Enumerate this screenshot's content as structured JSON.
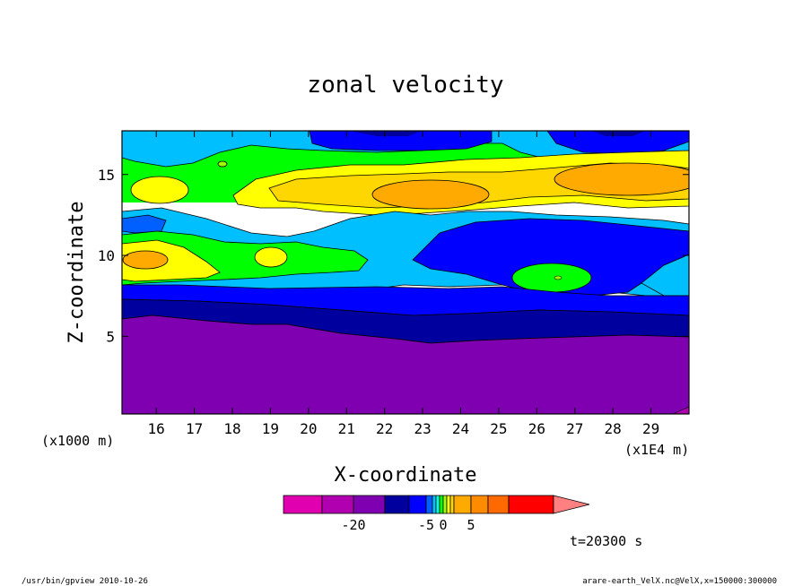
{
  "chart_data": {
    "type": "heatmap",
    "title": "zonal velocity",
    "xlabel": "X-coordinate",
    "ylabel": "Z-coordinate",
    "x_unit_left": "(x1000 m)",
    "x_unit_right": "(x1E4 m)",
    "xlim": [
      15.1,
      30.0
    ],
    "ylim": [
      0.2,
      17.7
    ],
    "x_ticks": [
      16,
      17,
      18,
      19,
      20,
      21,
      22,
      23,
      24,
      25,
      26,
      27,
      28,
      29
    ],
    "y_ticks": [
      5,
      10,
      15
    ],
    "colorbar": {
      "levels": [
        -30,
        -25,
        -20,
        -15,
        -10,
        -5,
        -3,
        -2,
        -1,
        0,
        1,
        2,
        3,
        5,
        10,
        15,
        20
      ],
      "colors": [
        "#e000b0",
        "#b000b0",
        "#7f00b0",
        "#00009f",
        "#0000ff",
        "#005fff",
        "#00bfff",
        "#00ffdf",
        "#00ff00",
        "#9fff00",
        "#ffff00",
        "#ffd700",
        "#ffaa00",
        "#ff8c00",
        "#ff6a00",
        "#ff0000"
      ],
      "extend_color": "#ff8080",
      "tick_labels": [
        {
          "level": -20,
          "label": "-20"
        },
        {
          "level": -5,
          "label": "-5"
        },
        {
          "level": 0,
          "label": "0"
        },
        {
          "level": 5,
          "label": "5"
        }
      ]
    },
    "annotation": "t=20300 s"
  },
  "footer": {
    "left": "/usr/bin/gpview  2010-10-26",
    "right": "arare-earth_VelX.nc@VelX,x=150000:300000"
  }
}
